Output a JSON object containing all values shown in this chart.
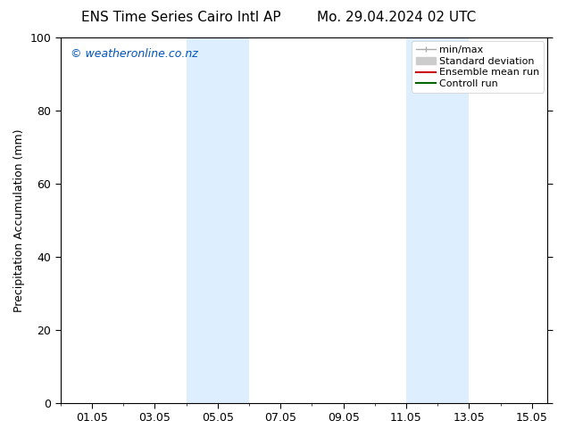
{
  "title_left": "ENS Time Series Cairo Intl AP",
  "title_right": "Mo. 29.04.2024 02 UTC",
  "ylabel": "Precipitation Accumulation (mm)",
  "watermark": "© weatheronline.co.nz",
  "watermark_color": "#0055bb",
  "xlim": [
    0.0,
    15.5
  ],
  "ylim": [
    0,
    100
  ],
  "yticks": [
    0,
    20,
    40,
    60,
    80,
    100
  ],
  "xtick_labels": [
    "01.05",
    "03.05",
    "05.05",
    "07.05",
    "09.05",
    "11.05",
    "13.05",
    "15.05"
  ],
  "xtick_positions": [
    1.0,
    3.0,
    5.0,
    7.0,
    9.0,
    11.0,
    13.0,
    15.0
  ],
  "shaded_bands": [
    {
      "x_start": 4.0,
      "x_end": 6.0
    },
    {
      "x_start": 11.0,
      "x_end": 13.0
    }
  ],
  "shaded_color": "#ddeeff",
  "background_color": "#ffffff",
  "font_size_title": 11,
  "font_size_axis": 9,
  "font_size_legend": 8,
  "font_size_watermark": 9,
  "legend_minmax_color": "#aaaaaa",
  "legend_std_color": "#cccccc",
  "legend_ens_color": "#cc0000",
  "legend_ctrl_color": "#006600"
}
